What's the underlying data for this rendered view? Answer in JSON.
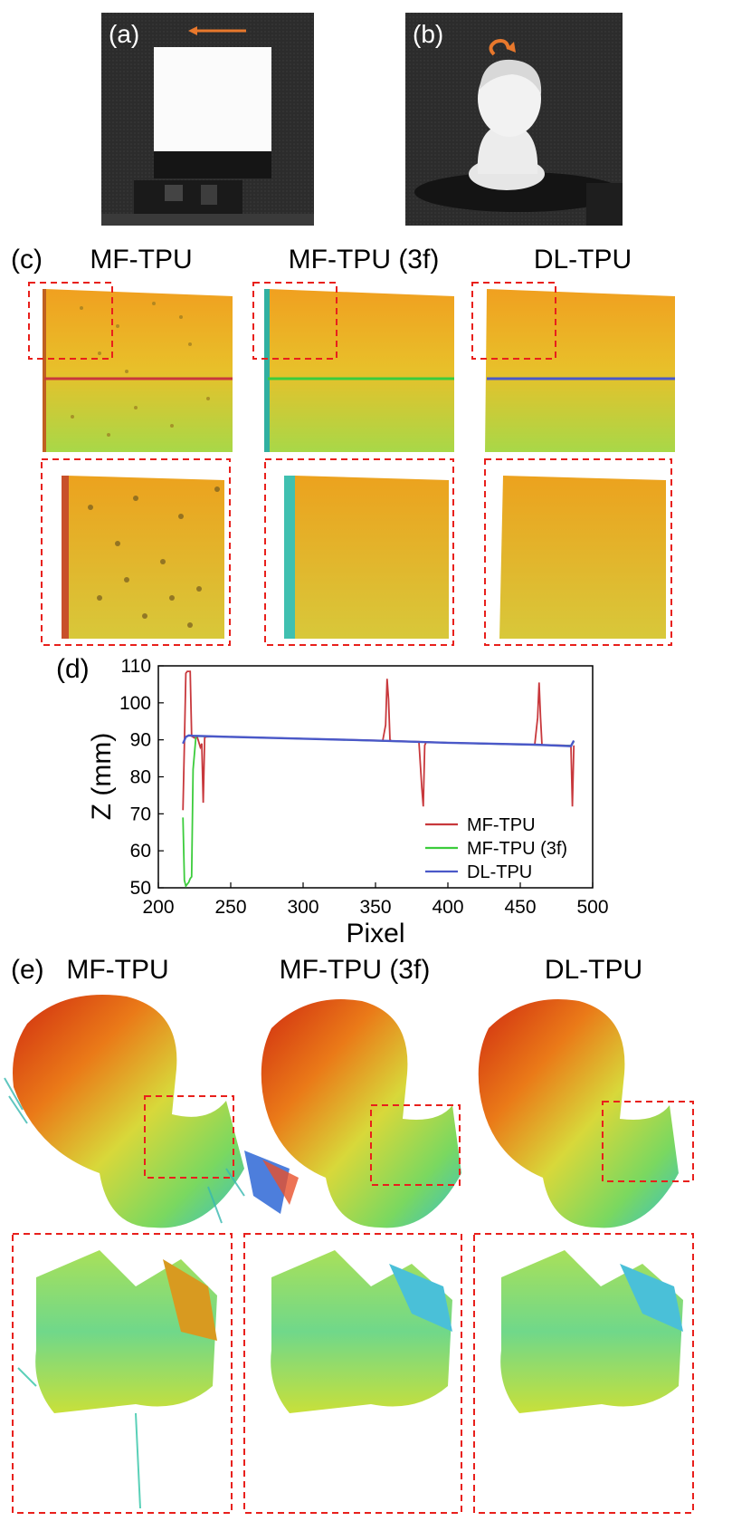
{
  "panels": {
    "a": {
      "letter": "(a)"
    },
    "b": {
      "letter": "(b)"
    },
    "c": {
      "letter": "(c)",
      "titles": [
        "MF-TPU",
        "MF-TPU (3f)",
        "DL-TPU"
      ]
    },
    "d": {
      "letter": "(d)"
    },
    "e": {
      "letter": "(e)",
      "titles": [
        "MF-TPU",
        "MF-TPU (3f)",
        "DL-TPU"
      ]
    }
  },
  "colors": {
    "mf_tpu": "#c8383c",
    "mf_tpu_3f": "#3ccc3c",
    "dl_tpu": "#4a58c8",
    "zoom_box": "#e8201c",
    "arrow": "#e8782c"
  },
  "chart_data": {
    "type": "line",
    "xlabel": "Pixel",
    "ylabel": "Z (mm)",
    "xlim": [
      200,
      500
    ],
    "ylim": [
      50,
      110
    ],
    "xticks": [
      200,
      250,
      300,
      350,
      400,
      450,
      500
    ],
    "yticks": [
      50,
      60,
      70,
      80,
      90,
      100,
      110
    ],
    "legend": "bottom-right",
    "series": [
      {
        "name": "MF-TPU",
        "x": [
          217,
          218,
          219,
          220,
          222,
          223,
          225,
          227,
          229,
          230,
          231,
          232,
          233,
          240,
          300,
          355,
          357,
          358,
          359,
          360,
          361,
          362,
          380,
          382,
          383,
          384,
          385,
          400,
          460,
          462,
          463,
          464,
          465,
          466,
          480,
          485,
          486,
          487
        ],
        "y": [
          71,
          89,
          108,
          108.5,
          108.5,
          91,
          90.5,
          90.6,
          88,
          89,
          73,
          90.6,
          90.8,
          90.9,
          90.3,
          89.8,
          94,
          106.5,
          101,
          90,
          89.7,
          89.7,
          89.5,
          77,
          72,
          88.5,
          89.4,
          89.2,
          88.7,
          96,
          105.5,
          96,
          88.6,
          88.6,
          88.5,
          88.4,
          72,
          88.5
        ]
      },
      {
        "name": "MF-TPU (3f)",
        "x": [
          217,
          218,
          219,
          220,
          221,
          222,
          223,
          224,
          226,
          240,
          300,
          400,
          485,
          487
        ],
        "y": [
          69,
          52,
          50.5,
          51,
          51.5,
          52.5,
          53,
          82,
          91,
          90.9,
          90.3,
          89.2,
          88.4,
          89.5
        ]
      },
      {
        "name": "DL-TPU",
        "x": [
          217,
          219,
          221,
          224,
          240,
          300,
          360,
          400,
          460,
          485,
          487
        ],
        "y": [
          89,
          90.8,
          91.2,
          91.1,
          90.9,
          90.3,
          89.7,
          89.2,
          88.7,
          88.3,
          89.8
        ]
      }
    ]
  }
}
